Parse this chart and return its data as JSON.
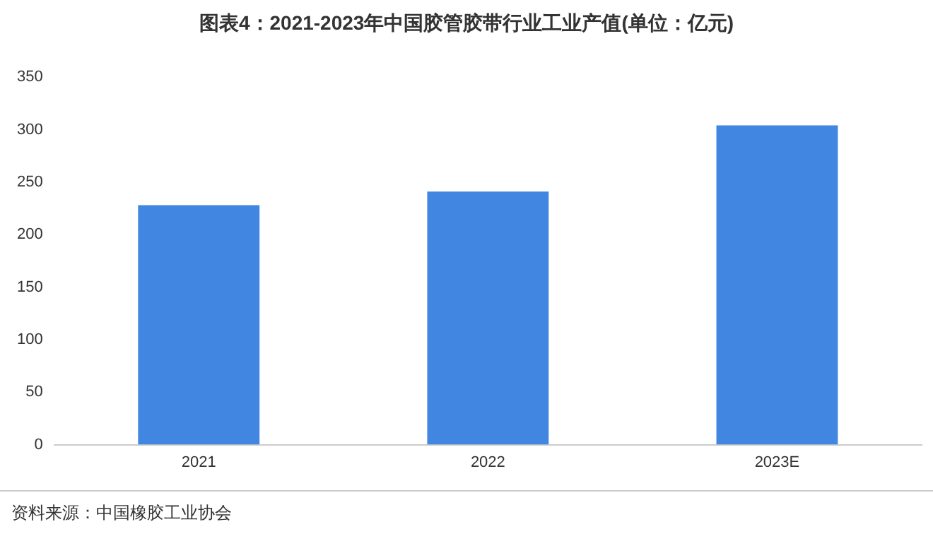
{
  "chart_data": {
    "type": "bar",
    "title": "图表4：2021-2023年中国胶管胶带行业工业产值(单位：亿元)",
    "categories": [
      "2021",
      "2022",
      "2023E"
    ],
    "values": [
      228,
      241,
      304
    ],
    "color": "#4186e0",
    "ylim": [
      0,
      350
    ],
    "yticks": [
      0,
      50,
      100,
      150,
      200,
      250,
      300,
      350
    ],
    "grid": false,
    "annotations": [
      "资料来源：中国橡胶工业协会"
    ]
  }
}
